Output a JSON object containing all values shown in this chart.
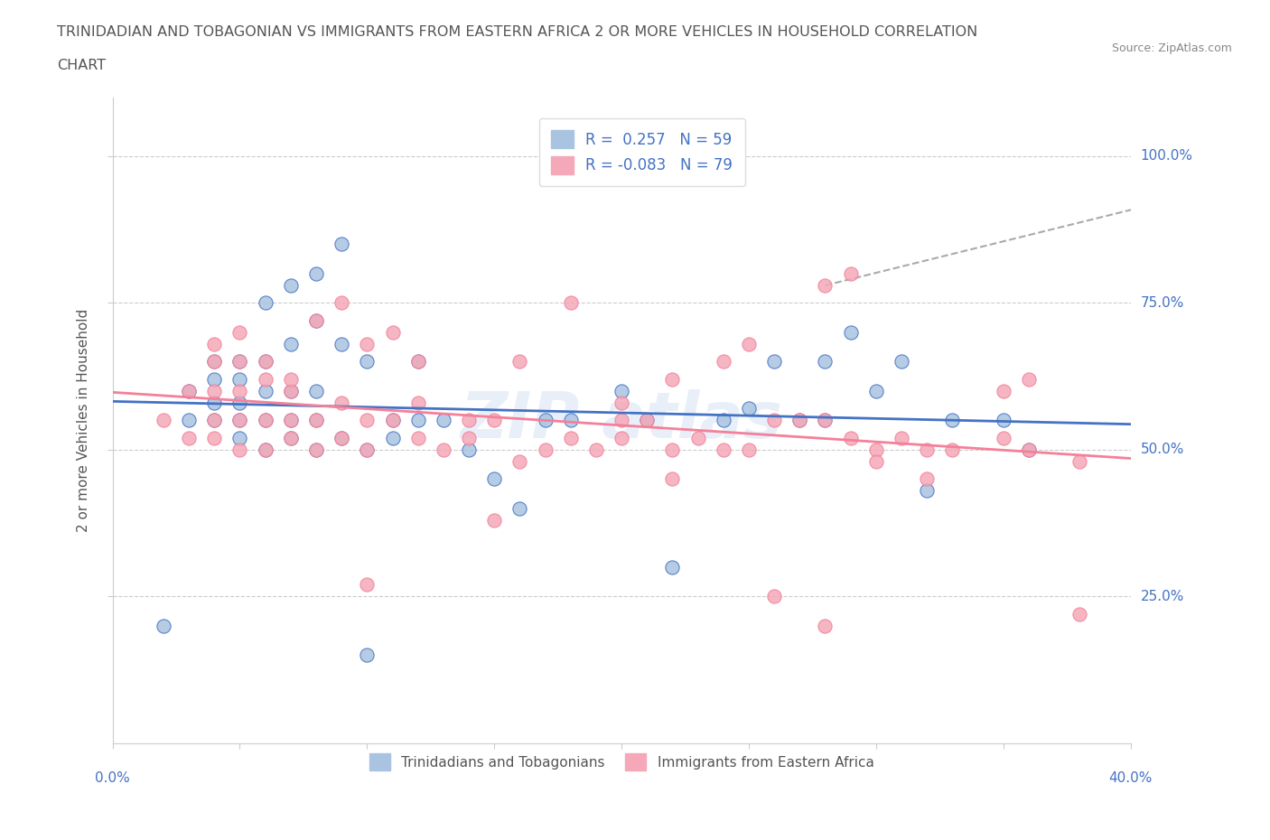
{
  "title_line1": "TRINIDADIAN AND TOBAGONIAN VS IMMIGRANTS FROM EASTERN AFRICA 2 OR MORE VEHICLES IN HOUSEHOLD CORRELATION",
  "title_line2": "CHART",
  "source": "Source: ZipAtlas.com",
  "xlabel_start": "0.0%",
  "xlabel_end": "40.0%",
  "ylabel": "2 or more Vehicles in Household",
  "ylabel_ticks": [
    "25.0%",
    "50.0%",
    "75.0%",
    "100.0%"
  ],
  "xlim": [
    0.0,
    0.4
  ],
  "ylim": [
    0.0,
    1.05
  ],
  "blue_R": 0.257,
  "blue_N": 59,
  "pink_R": -0.083,
  "pink_N": 79,
  "blue_color": "#a8c4e0",
  "pink_color": "#f4a8b8",
  "blue_line_color": "#4472c4",
  "pink_line_color": "#f48099",
  "legend_blue_label": "R =  0.257   N = 59",
  "legend_pink_label": "R = -0.083   N = 79",
  "watermark": "ZIPAtlas",
  "blue_scatter_x": [
    0.02,
    0.03,
    0.03,
    0.04,
    0.04,
    0.04,
    0.04,
    0.05,
    0.05,
    0.05,
    0.05,
    0.05,
    0.06,
    0.06,
    0.06,
    0.06,
    0.07,
    0.07,
    0.07,
    0.07,
    0.08,
    0.08,
    0.08,
    0.08,
    0.09,
    0.09,
    0.1,
    0.1,
    0.11,
    0.11,
    0.12,
    0.12,
    0.13,
    0.14,
    0.15,
    0.16,
    0.17,
    0.18,
    0.2,
    0.21,
    0.22,
    0.24,
    0.25,
    0.26,
    0.27,
    0.28,
    0.3,
    0.31,
    0.32,
    0.33,
    0.06,
    0.07,
    0.08,
    0.09,
    0.28,
    0.29,
    0.35,
    0.36,
    0.1
  ],
  "blue_scatter_y": [
    0.2,
    0.55,
    0.6,
    0.55,
    0.58,
    0.62,
    0.65,
    0.52,
    0.55,
    0.58,
    0.62,
    0.65,
    0.5,
    0.55,
    0.6,
    0.65,
    0.52,
    0.55,
    0.6,
    0.68,
    0.5,
    0.55,
    0.6,
    0.72,
    0.52,
    0.68,
    0.5,
    0.65,
    0.52,
    0.55,
    0.55,
    0.65,
    0.55,
    0.5,
    0.45,
    0.4,
    0.55,
    0.55,
    0.6,
    0.55,
    0.3,
    0.55,
    0.57,
    0.65,
    0.55,
    0.55,
    0.6,
    0.65,
    0.43,
    0.55,
    0.75,
    0.78,
    0.8,
    0.85,
    0.65,
    0.7,
    0.55,
    0.5,
    0.15
  ],
  "pink_scatter_x": [
    0.02,
    0.03,
    0.03,
    0.04,
    0.04,
    0.04,
    0.04,
    0.05,
    0.05,
    0.05,
    0.05,
    0.06,
    0.06,
    0.06,
    0.07,
    0.07,
    0.07,
    0.08,
    0.08,
    0.09,
    0.09,
    0.1,
    0.1,
    0.11,
    0.12,
    0.12,
    0.13,
    0.14,
    0.15,
    0.16,
    0.17,
    0.18,
    0.19,
    0.2,
    0.21,
    0.22,
    0.23,
    0.24,
    0.25,
    0.26,
    0.27,
    0.28,
    0.29,
    0.3,
    0.31,
    0.32,
    0.33,
    0.35,
    0.36,
    0.38,
    0.04,
    0.05,
    0.06,
    0.07,
    0.08,
    0.09,
    0.1,
    0.11,
    0.12,
    0.28,
    0.29,
    0.35,
    0.36,
    0.25,
    0.15,
    0.2,
    0.22,
    0.28,
    0.38,
    0.1,
    0.14,
    0.16,
    0.18,
    0.2,
    0.22,
    0.24,
    0.26,
    0.3,
    0.32
  ],
  "pink_scatter_y": [
    0.55,
    0.52,
    0.6,
    0.52,
    0.55,
    0.6,
    0.65,
    0.5,
    0.55,
    0.6,
    0.65,
    0.5,
    0.55,
    0.62,
    0.52,
    0.55,
    0.6,
    0.5,
    0.55,
    0.52,
    0.58,
    0.5,
    0.55,
    0.55,
    0.52,
    0.58,
    0.5,
    0.52,
    0.55,
    0.48,
    0.5,
    0.52,
    0.5,
    0.52,
    0.55,
    0.5,
    0.52,
    0.5,
    0.5,
    0.55,
    0.55,
    0.55,
    0.52,
    0.5,
    0.52,
    0.5,
    0.5,
    0.52,
    0.5,
    0.48,
    0.68,
    0.7,
    0.65,
    0.62,
    0.72,
    0.75,
    0.68,
    0.7,
    0.65,
    0.78,
    0.8,
    0.6,
    0.62,
    0.68,
    0.38,
    0.55,
    0.45,
    0.2,
    0.22,
    0.27,
    0.55,
    0.65,
    0.75,
    0.58,
    0.62,
    0.65,
    0.25,
    0.48,
    0.45
  ]
}
